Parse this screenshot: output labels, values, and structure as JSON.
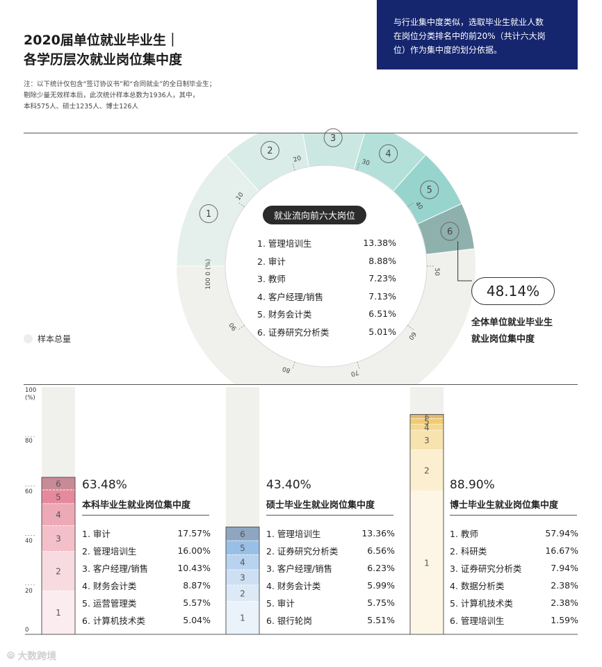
{
  "title": {
    "line1": "2020届单位就业毕业生｜",
    "line2": "各学历层次就业岗位集中度"
  },
  "note": {
    "line1": "注：以下统计仅包含“签订协议书”和“合同就业”的全日制毕业生；",
    "line2": "剔除少量无效样本后，此次统计样本总数为1936人，其中，",
    "line3": "本科575人、硕士1235人、博士126人"
  },
  "callout": {
    "line1": "与行业集中度类似，选取毕业生就业人数",
    "line2": "在岗位分类排名中的前20%（共计六大岗",
    "line3": "位）作为集中度的划分依据。"
  },
  "legend": {
    "label": "样本总量"
  },
  "colors": {
    "ring": [
      "#e5f0ec",
      "#d9ece7",
      "#cbe7e1",
      "#b4e0da",
      "#98d4ce",
      "#8fb1ad"
    ],
    "bachelor": [
      "#fbedef",
      "#f8dbe0",
      "#f3bfc9",
      "#eda9b6",
      "#e58a9c",
      "#c98a98"
    ],
    "master": [
      "#eaf2fa",
      "#dde9f6",
      "#cde0f3",
      "#b7d3ef",
      "#98c0e6",
      "#8ea6bf"
    ],
    "phd": [
      "#fdf6e6",
      "#fbefd0",
      "#f7e3ae",
      "#f4d88f",
      "#f1cb6e",
      "#e0b870"
    ],
    "track": "#f0f0ed",
    "callout_bg": "#15256e"
  },
  "ring_chart": {
    "pill": "就业流向前六大岗位",
    "items": [
      {
        "rank": "1",
        "label": "1.  管理培训生",
        "value": "13.38%",
        "v": 13.38
      },
      {
        "rank": "2",
        "label": "2.  审计",
        "value": "8.88%",
        "v": 8.88
      },
      {
        "rank": "3",
        "label": "3.  教师",
        "value": "7.23%",
        "v": 7.23
      },
      {
        "rank": "4",
        "label": "4.  客户经理/销售",
        "value": "7.13%",
        "v": 7.13
      },
      {
        "rank": "5",
        "label": "5.  财务会计类",
        "value": "6.51%",
        "v": 6.51
      },
      {
        "rank": "6",
        "label": "6.  证券研究分析类",
        "value": "5.01%",
        "v": 5.01
      }
    ],
    "ticks": [
      "10",
      "20",
      "30",
      "40",
      "50",
      "60",
      "70",
      "80",
      "90"
    ],
    "axis_label": "100 0 (%)",
    "total_pct": "48.14%",
    "caption_line1": "全体单位就业毕业生",
    "caption_line2": "就业岗位集中度"
  },
  "bar_axis": {
    "ticks": [
      "0",
      "20",
      "40",
      "60",
      "80",
      "100"
    ],
    "unit": "(%)"
  },
  "groups": [
    {
      "key": "bachelor",
      "total": "63.48%",
      "caption": "本科毕业生就业岗位集中度",
      "segments": [
        17.57,
        16.0,
        10.43,
        8.87,
        5.57,
        5.04
      ],
      "items": [
        {
          "label": "1.  审计",
          "value": "17.57%"
        },
        {
          "label": "2.  管理培训生",
          "value": "16.00%"
        },
        {
          "label": "3.  客户经理/销售",
          "value": "10.43%"
        },
        {
          "label": "4.  财务会计类",
          "value": "8.87%"
        },
        {
          "label": "5.  运营管理类",
          "value": "5.57%"
        },
        {
          "label": "6.  计算机技术类",
          "value": "5.04%"
        }
      ]
    },
    {
      "key": "master",
      "total": "43.40%",
      "caption": "硕士毕业生就业岗位集中度",
      "segments": [
        13.36,
        6.56,
        6.23,
        5.99,
        5.75,
        5.51
      ],
      "items": [
        {
          "label": "1.  管理培训生",
          "value": "13.36%"
        },
        {
          "label": "2.  证券研究分析类",
          "value": "6.56%"
        },
        {
          "label": "3.  客户经理/销售",
          "value": "6.23%"
        },
        {
          "label": "4.  财务会计类",
          "value": "5.99%"
        },
        {
          "label": "5.  审计",
          "value": "5.75%"
        },
        {
          "label": "6.  银行轮岗",
          "value": "5.51%"
        }
      ]
    },
    {
      "key": "phd",
      "total": "88.90%",
      "caption": "博士毕业生就业岗位集中度",
      "segments": [
        57.94,
        16.67,
        7.94,
        2.38,
        2.38,
        1.59
      ],
      "items": [
        {
          "label": "1.  教师",
          "value": "57.94%"
        },
        {
          "label": "2.  科研类",
          "value": "16.67%"
        },
        {
          "label": "3.  证券研究分析类",
          "value": "7.94%"
        },
        {
          "label": "4.  数据分析类",
          "value": "2.38%"
        },
        {
          "label": "5.  计算机技术类",
          "value": "2.38%"
        },
        {
          "label": "6.  管理培训生",
          "value": "1.59%"
        }
      ]
    }
  ],
  "chart_data": [
    {
      "type": "pie",
      "categories": [
        "管理培训生",
        "审计",
        "教师",
        "客户经理/销售",
        "财务会计类",
        "证券研究分析类"
      ],
      "values": [
        13.38,
        8.88,
        7.23,
        7.13,
        6.51,
        5.01
      ],
      "total": 48.14,
      "ylim": [
        0,
        100
      ]
    },
    {
      "type": "bar",
      "categories": [
        "本科",
        "硕士",
        "博士"
      ],
      "ylim": [
        0,
        100
      ],
      "series": [
        {
          "values": [
            17.57,
            13.36,
            57.94
          ]
        },
        {
          "values": [
            16.0,
            6.56,
            16.67
          ]
        },
        {
          "values": [
            10.43,
            6.23,
            7.94
          ]
        },
        {
          "values": [
            8.87,
            5.99,
            2.38
          ]
        },
        {
          "values": [
            5.57,
            5.75,
            2.38
          ]
        },
        {
          "values": [
            5.04,
            5.51,
            1.59
          ]
        }
      ]
    }
  ],
  "logo": {
    "text": "大数跨境"
  }
}
